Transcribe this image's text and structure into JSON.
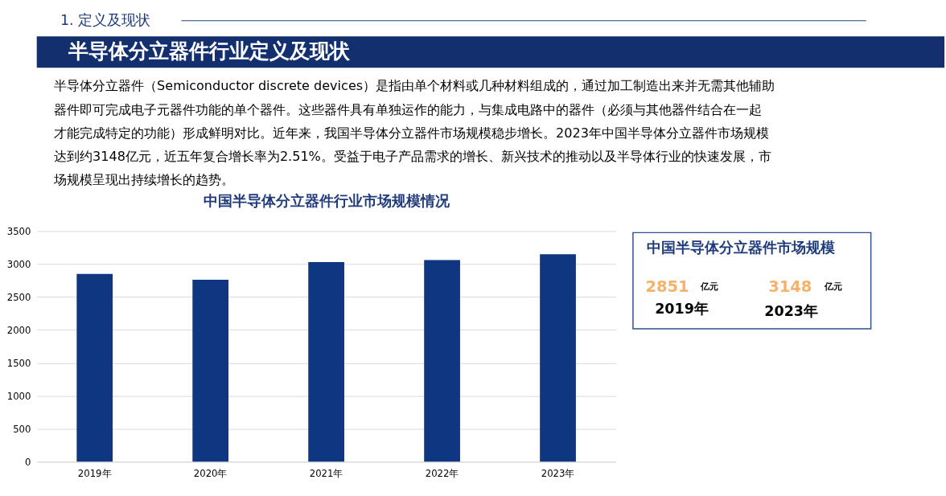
{
  "chart_data": {
    "type": "bar",
    "title": "中国半导体分立器件行业市场规模情况",
    "categories": [
      "2019年",
      "2020年",
      "2021年",
      "2022年",
      "2023年"
    ],
    "values": [
      2851,
      2760,
      3030,
      3060,
      3148
    ],
    "color": "#0e3681",
    "ylim": [
      0,
      3500
    ],
    "yticks": [
      0,
      500,
      1000,
      1500,
      2000,
      2500,
      3000,
      3500
    ],
    "grid": "y",
    "annotations": [
      "1. 定义及现状",
      "半导体分立器件行业定义及现状",
      "半导体分立器件（Semiconductor discrete devices）是指由单个材料或几种材料组成的，通过加工制造出来并无需其他辅助",
      "器件即可完成电子元器件功能的单个器件。这些器件具有单独运作的能力，与集成电路中的器件（必须与其他器件结合在一起",
      "才能完成特定的功能）形成鲜明对比。近年来，我国半导体分立器件市场规模稳步增长。2023年中国半导体分立器件市场规模",
      "达到约3148亿元，近五年复合增长率为2.51%。受益于电子产品需求的增长、新兴技术的推动以及半导体行业的快速发展，市",
      "场规模呈现出持续增长的趋势。",
      "中国半导体分立器件市场规模",
      "2851",
      "亿元",
      "2019年",
      "3148",
      "亿元",
      "2023年"
    ]
  }
}
